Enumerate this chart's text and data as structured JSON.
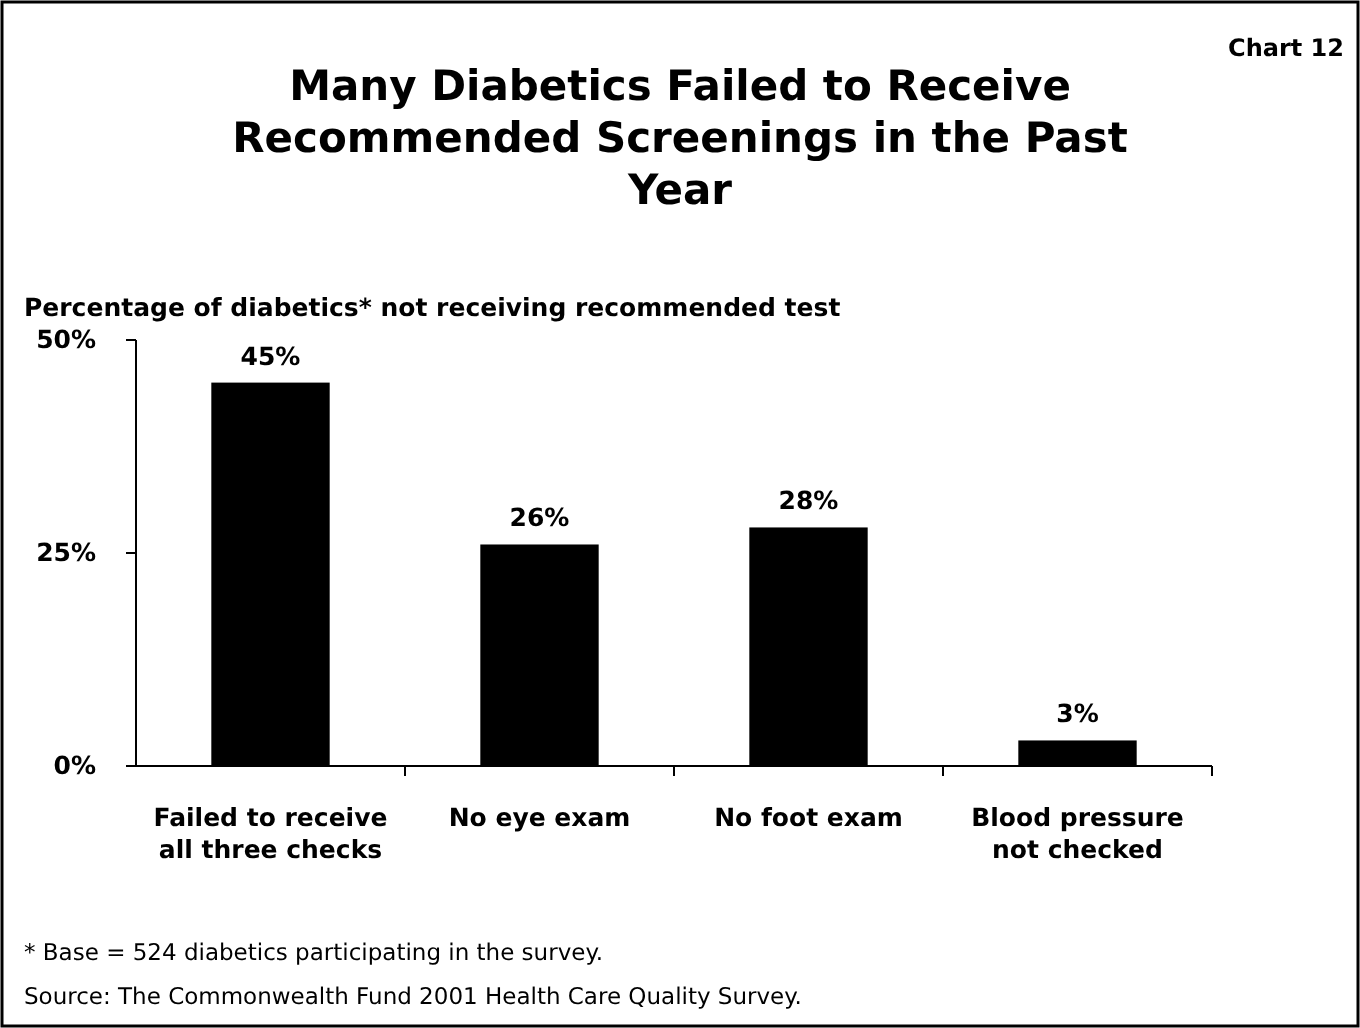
{
  "chart_data": {
    "type": "bar",
    "title": "Many Diabetics Failed to Receive Recommended Screenings in the Past Year",
    "subtitle": "Percentage of diabetics* not receiving recommended test",
    "categories": [
      "Failed to receive all three checks",
      "No eye exam",
      "No foot exam",
      "Blood pressure not checked"
    ],
    "values": [
      45,
      26,
      28,
      3
    ],
    "value_labels": [
      "45%",
      "26%",
      "28%",
      "3%"
    ],
    "color": "#000000",
    "ylim": [
      0,
      50
    ],
    "yticks": [
      {
        "value": 0,
        "label": "0%"
      },
      {
        "value": 25,
        "label": "25%"
      },
      {
        "value": 50,
        "label": "50%"
      }
    ],
    "grid": false,
    "annotations": [
      "Chart 12",
      "* Base = 524 diabetics participating in the survey.",
      "Source: The Commonwealth Fund 2001 Health Care Quality Survey."
    ]
  }
}
